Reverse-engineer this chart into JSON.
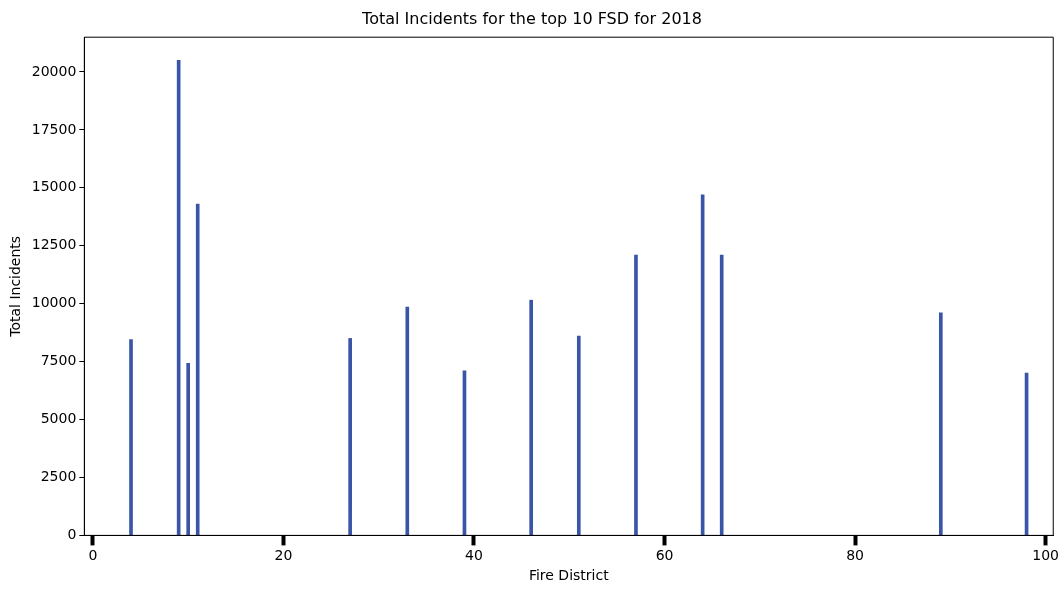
{
  "chart_data": {
    "type": "bar",
    "title": "Total Incidents for the top 10 FSD for 2018",
    "xlabel": "Fire District",
    "ylabel": "Total Incidents",
    "x": [
      4,
      9,
      10,
      11,
      27,
      33,
      39,
      46,
      51,
      57,
      64,
      66,
      89,
      98
    ],
    "values": [
      8450,
      20500,
      7430,
      14300,
      8500,
      9850,
      7100,
      10150,
      8600,
      12100,
      14700,
      12100,
      9600,
      7000
    ],
    "color": "#3a55a8",
    "xlim": [
      -0.9,
      100.8
    ],
    "xticks": [
      0,
      20,
      40,
      60,
      80,
      100
    ],
    "ylim": [
      0,
      21500
    ],
    "yticks": [
      0,
      2500,
      5000,
      7500,
      10000,
      12500,
      15000,
      17500,
      20000
    ]
  }
}
